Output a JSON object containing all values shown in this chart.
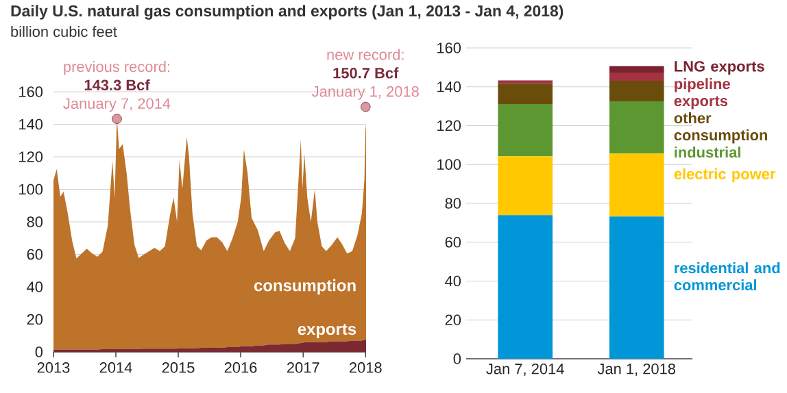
{
  "chart_data": [
    {
      "type": "area",
      "stacked": true,
      "title": "Daily U.S. natural gas consumption and exports (Jan 1, 2013 - Jan 4, 2018)",
      "subtitle": "billion cubic feet",
      "x": [
        "2013-01-01",
        "2013-01-20",
        "2013-02-10",
        "2013-03-01",
        "2013-03-25",
        "2013-04-20",
        "2013-05-15",
        "2013-06-15",
        "2013-07-15",
        "2013-08-15",
        "2013-09-15",
        "2013-10-15",
        "2013-11-15",
        "2013-12-12",
        "2013-12-25",
        "2014-01-07",
        "2014-01-20",
        "2014-02-10",
        "2014-03-05",
        "2014-03-25",
        "2014-04-20",
        "2014-05-15",
        "2014-06-15",
        "2014-07-15",
        "2014-08-15",
        "2014-09-15",
        "2014-10-15",
        "2014-11-15",
        "2014-12-05",
        "2014-12-25",
        "2015-01-08",
        "2015-01-25",
        "2015-02-20",
        "2015-03-05",
        "2015-03-25",
        "2015-04-20",
        "2015-05-15",
        "2015-06-15",
        "2015-07-15",
        "2015-08-15",
        "2015-09-15",
        "2015-10-15",
        "2015-11-15",
        "2015-12-15",
        "2016-01-05",
        "2016-01-20",
        "2016-02-10",
        "2016-03-05",
        "2016-04-10",
        "2016-05-15",
        "2016-06-15",
        "2016-07-20",
        "2016-08-15",
        "2016-09-15",
        "2016-10-15",
        "2016-11-15",
        "2016-12-18",
        "2016-12-28",
        "2017-01-08",
        "2017-01-25",
        "2017-02-15",
        "2017-03-10",
        "2017-03-25",
        "2017-04-20",
        "2017-05-15",
        "2017-06-15",
        "2017-07-20",
        "2017-08-15",
        "2017-09-15",
        "2017-10-15",
        "2017-11-15",
        "2017-12-10",
        "2017-12-25",
        "2018-01-01",
        "2018-01-04"
      ],
      "series": [
        {
          "name": "exports",
          "color": "#7b2a32",
          "values": [
            1.5,
            1.5,
            1.5,
            1.5,
            1.5,
            1.5,
            1.5,
            1.5,
            1.5,
            1.5,
            1.5,
            1.7,
            1.7,
            1.7,
            1.7,
            1.8,
            1.8,
            1.8,
            1.8,
            1.8,
            1.8,
            1.8,
            2,
            2,
            2,
            2,
            2,
            2,
            2,
            2,
            2.2,
            2.2,
            2.2,
            2.2,
            2.2,
            2.2,
            2.5,
            2.5,
            2.5,
            2.5,
            2.5,
            3,
            3,
            3,
            3.5,
            3.5,
            3.5,
            3.5,
            4,
            4,
            4.5,
            4.5,
            4.5,
            5,
            5,
            5,
            5.5,
            5.5,
            6,
            6,
            6,
            6,
            6,
            6,
            6,
            6.5,
            6.5,
            6.5,
            6.5,
            7,
            7,
            7,
            7.5,
            7.5,
            7.5
          ]
        },
        {
          "name": "consumption",
          "color": "#bd732a",
          "values": [
            104,
            111,
            94,
            97,
            84,
            67,
            56,
            59,
            62,
            59,
            57,
            60,
            76,
            116,
            93,
            142,
            123,
            126,
            108,
            86,
            64,
            56,
            58,
            60,
            62,
            60,
            63,
            83,
            93,
            78,
            116,
            98,
            130,
            118,
            83,
            63,
            60,
            66,
            68,
            68,
            65,
            59,
            67,
            77,
            92,
            121,
            107,
            79,
            71,
            58,
            64,
            69,
            70,
            62,
            57,
            65,
            125,
            95,
            116,
            89,
            74,
            94,
            74,
            59,
            56,
            59,
            64,
            60,
            54,
            55,
            65,
            78,
            98,
            133,
            128
          ]
        }
      ],
      "xlim": [
        "2013-01-01",
        "2018-01-04"
      ],
      "xticks": [
        "2013",
        "2014",
        "2015",
        "2016",
        "2017",
        "2018"
      ],
      "ylim": [
        0,
        160
      ],
      "yticks": [
        0,
        20,
        40,
        60,
        80,
        100,
        120,
        140,
        160
      ],
      "grid": "y",
      "annotations": [
        "previous record:",
        "143.3 Bcf",
        {
          "text": "January 7, 2014",
          "x": "2014-01-07",
          "y": 143.3
        },
        "new record:",
        "150.7 Bcf",
        {
          "text": "January 1, 2018",
          "x": "2018-01-01",
          "y": 150.7
        }
      ]
    },
    {
      "type": "bar",
      "stacked": true,
      "categories": [
        "Jan 7, 2014",
        "Jan 1, 2018"
      ],
      "series": [
        {
          "name": "residential and commercial",
          "color": "#0096d7",
          "values": [
            73.9,
            73.2
          ]
        },
        {
          "name": "electric power",
          "color": "#ffc800",
          "values": [
            30.3,
            32.4
          ]
        },
        {
          "name": "industrial",
          "color": "#5d9732",
          "values": [
            26.9,
            26.9
          ]
        },
        {
          "name": "other consumption",
          "color": "#6b4d0b",
          "values": [
            10.5,
            10.6
          ]
        },
        {
          "name": "pipeline exports",
          "color": "#a33340",
          "values": [
            1.5,
            4.2
          ]
        },
        {
          "name": "LNG exports",
          "color": "#7a2230",
          "values": [
            0.2,
            3.4
          ]
        }
      ],
      "ylim": [
        0,
        160
      ],
      "yticks": [
        0,
        20,
        40,
        60,
        80,
        100,
        120,
        140,
        160
      ],
      "grid": "y"
    }
  ]
}
